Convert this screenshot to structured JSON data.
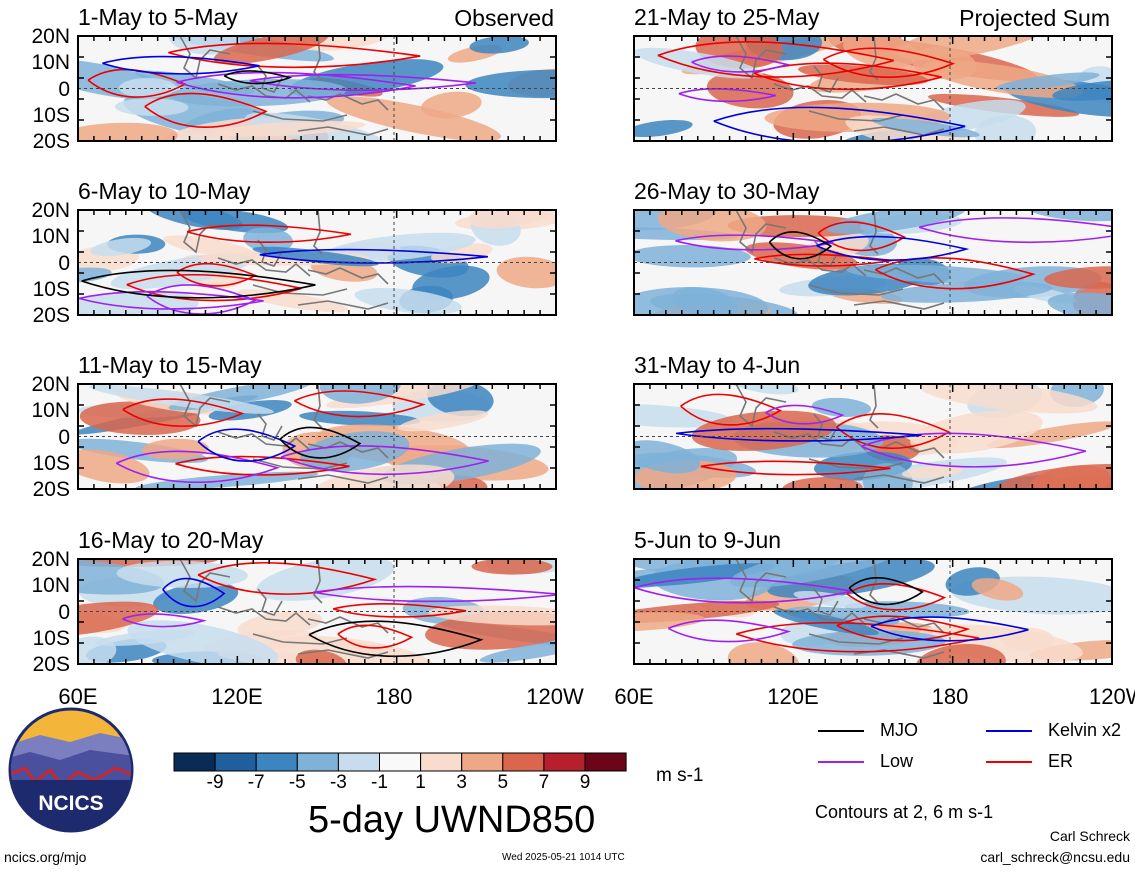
{
  "panels": [
    {
      "title": "1-May to 5-May",
      "tag": "Observed"
    },
    {
      "title": "6-May to 10-May",
      "tag": ""
    },
    {
      "title": "11-May to 15-May",
      "tag": ""
    },
    {
      "title": "16-May to 20-May",
      "tag": ""
    },
    {
      "title": "21-May to 25-May",
      "tag": "Projected Sum"
    },
    {
      "title": "26-May to 30-May",
      "tag": ""
    },
    {
      "title": "31-May to 4-Jun",
      "tag": ""
    },
    {
      "title": "5-Jun to 9-Jun",
      "tag": ""
    }
  ],
  "lat_labels": [
    "20N",
    "10N",
    "0",
    "10S",
    "20S"
  ],
  "lon_labels": [
    "60E",
    "120E",
    "180",
    "120W"
  ],
  "colorbar": {
    "labels": [
      "-9",
      "-7",
      "-5",
      "-3",
      "-1",
      "1",
      "3",
      "5",
      "7",
      "9"
    ],
    "colors": [
      "#0b2b57",
      "#1f5f9e",
      "#3d85bf",
      "#7fb2d8",
      "#c7dded",
      "#f9f9f9",
      "#f8dccd",
      "#eea886",
      "#d9664d",
      "#b4202b",
      "#6a0618"
    ],
    "units": "m s-1"
  },
  "main_title": "5-day UWND850",
  "legend": {
    "items": [
      {
        "label": "MJO",
        "color": "#000000"
      },
      {
        "label": "Kelvin x2",
        "color": "#0000dd"
      },
      {
        "label": "Low",
        "color": "#a020f0"
      },
      {
        "label": "ER",
        "color": "#ee0000"
      }
    ],
    "contours_note": "Contours at 2, 6 m s-1"
  },
  "logo": {
    "text": "NCICS"
  },
  "footer": {
    "site": "ncics.org/mjo",
    "timestamp": "Wed 2025-05-21 1014 UTC",
    "author": "Carl Schreck",
    "email": "carl_schreck@ncsu.edu"
  }
}
